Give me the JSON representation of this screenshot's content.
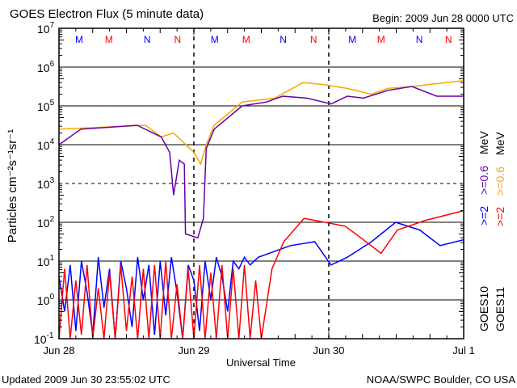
{
  "chart_data": {
    "type": "line",
    "title": "GOES Electron Flux (5 minute data)",
    "begin": "Begin: 2009 Jun 28 0000 UTC",
    "updated": "Updated 2009 Jun 30 23:55:02 UTC",
    "credit": "NOAA/SWPC Boulder, CO USA",
    "xlabel": "Universal Time",
    "ylabel": "Particles cm⁻²s⁻¹sr⁻¹",
    "yscale": "log",
    "ylim_log10": [
      -1,
      7
    ],
    "xlim_hours": [
      0,
      72
    ],
    "grid": true,
    "dashed_grid_log10": [
      3
    ],
    "y_ticks": [
      {
        "base": "10",
        "exp": "7",
        "log": 7
      },
      {
        "base": "10",
        "exp": "6",
        "log": 6
      },
      {
        "base": "10",
        "exp": "5",
        "log": 5
      },
      {
        "base": "10",
        "exp": "4",
        "log": 4
      },
      {
        "base": "10",
        "exp": "3",
        "log": 3
      },
      {
        "base": "10",
        "exp": "2",
        "log": 2
      },
      {
        "base": "10",
        "exp": "1",
        "log": 1
      },
      {
        "base": "10",
        "exp": "0",
        "log": 0
      },
      {
        "base": "10",
        "exp": "-1",
        "log": -1
      }
    ],
    "x_ticks": [
      {
        "label": "Jun 28",
        "hour": 0
      },
      {
        "label": "Jun 29",
        "hour": 24
      },
      {
        "label": "Jun 30",
        "hour": 48
      },
      {
        "label": "Jul 1",
        "hour": 72
      }
    ],
    "markers": [
      {
        "label": "M",
        "hour": 3.6,
        "color": "#0000ff"
      },
      {
        "label": "M",
        "hour": 8.9,
        "color": "#ff0000"
      },
      {
        "label": "N",
        "hour": 15.7,
        "color": "#0000ff"
      },
      {
        "label": "N",
        "hour": 21.1,
        "color": "#ff0000"
      },
      {
        "label": "M",
        "hour": 27.7,
        "color": "#0000ff"
      },
      {
        "label": "M",
        "hour": 33.3,
        "color": "#ff0000"
      },
      {
        "label": "N",
        "hour": 39.9,
        "color": "#0000ff"
      },
      {
        "label": "N",
        "hour": 45.3,
        "color": "#ff0000"
      },
      {
        "label": "M",
        "hour": 52.2,
        "color": "#0000ff"
      },
      {
        "label": "M",
        "hour": 57.3,
        "color": "#ff0000"
      },
      {
        "label": "N",
        "hour": 64.1,
        "color": "#0000ff"
      },
      {
        "label": "N",
        "hour": 69.3,
        "color": "#ff0000"
      }
    ],
    "legend": {
      "placement": "right",
      "columns": [
        {
          "satellite": "GOES10",
          "sat_color": "#000000",
          "e2": ">=2",
          "e2_color": "#0000ff",
          "e06": ">=0.6",
          "e06_color": "#6600aa",
          "unit": "MeV"
        },
        {
          "satellite": "GOES11",
          "sat_color": "#000000",
          "e2": ">=2",
          "e2_color": "#ff0000",
          "e06": ">=0.6",
          "e06_color": "#ffa500",
          "unit": "MeV"
        }
      ]
    },
    "series": [
      {
        "name": "GOES11 >=0.6 MeV",
        "color": "#ffa500",
        "hours": [
          0,
          15.4,
          18.2,
          20.4,
          24,
          25.2,
          26.2,
          27.6,
          32.6,
          38.4,
          43.4,
          47,
          51.3,
          55.6,
          58.5,
          62.8,
          72
        ],
        "log10": [
          4.4,
          4.5,
          4.2,
          4.3,
          3.8,
          3.5,
          4.0,
          4.5,
          5.1,
          5.2,
          5.6,
          5.55,
          5.45,
          5.3,
          5.45,
          5.5,
          5.65
        ]
      },
      {
        "name": "GOES10 >=0.6 MeV",
        "color": "#6600aa",
        "hours": [
          0,
          3.9,
          13.9,
          18.2,
          19.7,
          20.4,
          21.4,
          22.3,
          22.5,
          24.7,
          25.7,
          26.2,
          27.6,
          32.6,
          36.9,
          39.8,
          44.1,
          48.4,
          51.3,
          54.2,
          58.5,
          62.8,
          67.2,
          72
        ],
        "log10": [
          4.0,
          4.4,
          4.5,
          4.2,
          3.8,
          2.7,
          3.6,
          3.5,
          1.7,
          1.6,
          2.1,
          3.9,
          4.4,
          5.0,
          5.1,
          5.25,
          5.2,
          5.05,
          5.25,
          5.2,
          5.4,
          5.5,
          5.25,
          5.25
        ]
      },
      {
        "name": "GOES10 >=2 MeV",
        "color": "#0000ff",
        "hours": [
          0,
          1,
          2,
          3,
          4,
          5,
          6,
          7,
          8,
          9,
          10,
          11,
          12,
          13,
          14,
          15,
          16,
          17,
          18,
          19,
          20,
          21,
          22,
          23,
          24,
          25,
          26,
          27,
          28,
          29,
          30,
          31,
          32,
          33,
          34,
          35.5,
          41.2,
          45.5,
          48.4,
          51.3,
          55.6,
          59.9,
          64.2,
          67.8,
          72
        ],
        "log10": [
          0.6,
          -0.3,
          0.9,
          -0.8,
          1.0,
          0.2,
          -0.9,
          1.1,
          -0.2,
          0.8,
          -1,
          1.0,
          0.3,
          -0.7,
          1.1,
          0,
          0.9,
          -0.9,
          1.0,
          -0.4,
          1.1,
          0.2,
          -1,
          0.9,
          0.5,
          -0.8,
          1.0,
          0,
          1.1,
          0.6,
          -0.3,
          1.0,
          0.8,
          1.1,
          0.9,
          1.1,
          1.4,
          1.5,
          0.9,
          1.1,
          1.5,
          2.0,
          1.8,
          1.4,
          1.55
        ]
      },
      {
        "name": "GOES11 >=2 MeV",
        "color": "#ff0000",
        "hours": [
          0,
          1,
          2,
          3,
          4,
          5,
          6,
          7,
          8,
          9,
          10,
          11,
          12,
          13,
          14,
          15,
          16,
          17,
          18,
          19,
          20,
          21,
          22,
          23,
          24,
          25,
          26,
          27,
          28,
          29,
          30,
          31,
          32,
          33,
          34,
          35,
          36,
          37.9,
          40,
          43.6,
          47.3,
          50.9,
          53.7,
          57.3,
          60.2,
          65.2,
          72
        ],
        "log10": [
          -1,
          0.8,
          -1,
          0.5,
          -0.9,
          0.9,
          -1,
          0.3,
          -1,
          0.7,
          -1,
          0.9,
          -0.8,
          0.6,
          -1,
          0.8,
          -1,
          0.9,
          -1,
          1.0,
          -1,
          0.4,
          -1,
          0.8,
          -1,
          0.9,
          -1,
          0.7,
          -1,
          0.9,
          -1,
          0.8,
          -1,
          0.9,
          -1,
          0.5,
          -1,
          0.8,
          1.5,
          2.1,
          2.0,
          1.9,
          1.6,
          1.2,
          1.8,
          2.05,
          2.3
        ]
      }
    ]
  }
}
